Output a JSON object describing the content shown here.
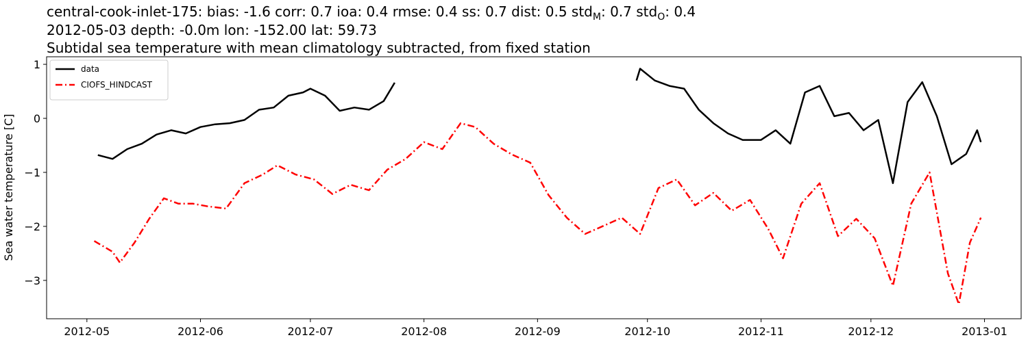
{
  "chart_data": {
    "type": "line",
    "title": [
      [
        "central-cook-inlet-175: bias: -1.6  corr: 0.7  ioa: 0.4  rmse: 0.4  ss: 0.7  dist: 0.5  std",
        "M",
        ": 0.7  std",
        "O",
        ": 0.4"
      ],
      "2012-05-03 depth: -0.0m lon: -152.00 lat: 59.73",
      "Subtidal sea temperature with mean climatology subtracted, from fixed station"
    ],
    "y_label": "Sea water temperature [C]",
    "xlim": [
      "2012-04-20",
      "2013-01-11"
    ],
    "xticks": [
      "2012-05",
      "2012-06",
      "2012-07",
      "2012-08",
      "2012-09",
      "2012-10",
      "2012-11",
      "2012-12",
      "2013-01"
    ],
    "ylim": [
      -3.71,
      1.14
    ],
    "yticks": [
      {
        "value": -3,
        "label": "−3"
      },
      {
        "value": -2,
        "label": "−2"
      },
      {
        "value": -1,
        "label": "−1"
      },
      0,
      1
    ],
    "grid": false,
    "legend": "upper left",
    "series": [
      {
        "name": "data",
        "color": "#000000",
        "dash": "solid",
        "x": [
          "2012-05-04",
          "2012-05-08",
          "2012-05-12",
          "2012-05-16",
          "2012-05-20",
          "2012-05-24",
          "2012-05-28",
          "2012-06-01",
          "2012-06-05",
          "2012-06-09",
          "2012-06-13",
          "2012-06-17",
          "2012-06-21",
          "2012-06-25",
          "2012-06-29",
          "2012-07-01",
          "2012-07-05",
          "2012-07-09",
          "2012-07-13",
          "2012-07-17",
          "2012-07-21",
          "2012-07-24",
          "2012-08-25",
          "2012-09-28",
          "2012-09-29",
          "2012-10-03",
          "2012-10-07",
          "2012-10-11",
          "2012-10-15",
          "2012-10-19",
          "2012-10-23",
          "2012-10-27",
          "2012-11-01",
          "2012-11-05",
          "2012-11-09",
          "2012-11-13",
          "2012-11-17",
          "2012-11-21",
          "2012-11-25",
          "2012-11-29",
          "2012-12-03",
          "2012-12-07",
          "2012-12-11",
          "2012-12-15",
          "2012-12-19",
          "2012-12-23",
          "2012-12-27",
          "2012-12-30",
          "2012-12-31"
        ],
        "values": [
          -0.68,
          -0.75,
          -0.57,
          -0.47,
          -0.3,
          -0.22,
          -0.28,
          -0.16,
          -0.11,
          -0.09,
          -0.03,
          0.16,
          0.2,
          0.42,
          0.48,
          0.55,
          0.42,
          0.14,
          0.2,
          0.16,
          0.32,
          0.66,
          null,
          0.7,
          0.92,
          0.7,
          0.6,
          0.55,
          0.16,
          -0.09,
          -0.28,
          -0.4,
          -0.4,
          -0.22,
          -0.47,
          0.48,
          0.6,
          0.04,
          0.1,
          -0.22,
          -0.03,
          -1.2,
          0.3,
          0.67,
          0.04,
          -0.85,
          -0.66,
          -0.22,
          -0.44
        ]
      },
      {
        "name": "CIOFS_HINDCAST",
        "color": "#ff0000",
        "dash": "dashdot",
        "x": [
          "2012-05-03",
          "2012-05-08",
          "2012-05-10",
          "2012-05-14",
          "2012-05-18",
          "2012-05-22",
          "2012-05-26",
          "2012-05-30",
          "2012-06-03",
          "2012-06-08",
          "2012-06-13",
          "2012-06-18",
          "2012-06-22",
          "2012-06-27",
          "2012-07-02",
          "2012-07-07",
          "2012-07-12",
          "2012-07-17",
          "2012-07-22",
          "2012-07-27",
          "2012-08-01",
          "2012-08-06",
          "2012-08-11",
          "2012-08-15",
          "2012-08-20",
          "2012-08-25",
          "2012-08-30",
          "2012-09-04",
          "2012-09-09",
          "2012-09-14",
          "2012-09-19",
          "2012-09-24",
          "2012-09-29",
          "2012-10-04",
          "2012-10-09",
          "2012-10-14",
          "2012-10-19",
          "2012-10-24",
          "2012-10-29",
          "2012-11-03",
          "2012-11-07",
          "2012-11-12",
          "2012-11-17",
          "2012-11-22",
          "2012-11-27",
          "2012-12-02",
          "2012-12-07",
          "2012-12-12",
          "2012-12-17",
          "2012-12-22",
          "2012-12-25",
          "2012-12-28",
          "2012-12-31"
        ],
        "values": [
          -2.27,
          -2.47,
          -2.67,
          -2.3,
          -1.86,
          -1.48,
          -1.58,
          -1.58,
          -1.63,
          -1.67,
          -1.2,
          -1.04,
          -0.87,
          -1.04,
          -1.13,
          -1.4,
          -1.23,
          -1.33,
          -0.95,
          -0.75,
          -0.44,
          -0.57,
          -0.09,
          -0.16,
          -0.47,
          -0.67,
          -0.82,
          -1.42,
          -1.84,
          -2.14,
          -1.99,
          -1.84,
          -2.14,
          -1.29,
          -1.13,
          -1.61,
          -1.38,
          -1.71,
          -1.51,
          -2.05,
          -2.59,
          -1.58,
          -1.2,
          -2.18,
          -1.86,
          -2.22,
          -3.1,
          -1.58,
          -1.0,
          -2.87,
          -3.44,
          -2.3,
          -1.84
        ]
      }
    ]
  }
}
